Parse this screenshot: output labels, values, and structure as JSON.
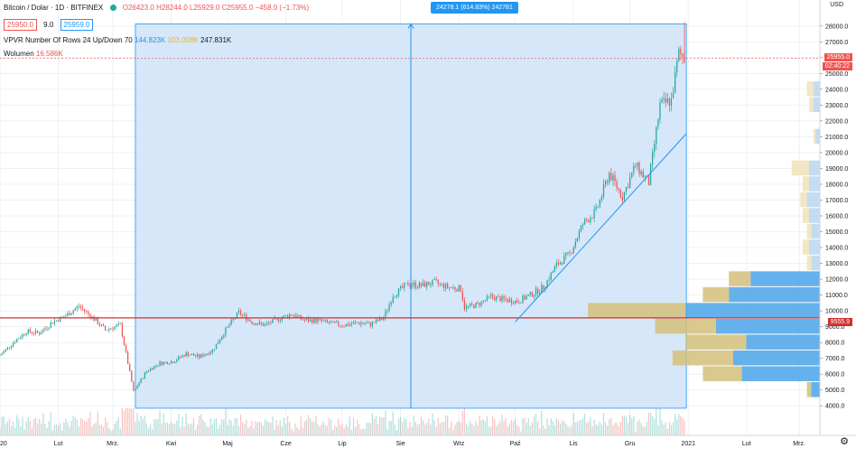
{
  "legend": {
    "symbol": "Bitcoin / Dolar · 1D · BITFINEX",
    "ohlc": "O26423.0 H28244.0 L25929.0 C25955.0 −458.0 (−1.73%)",
    "bid": "25950.0",
    "spread": "9.0",
    "ask": "25959.0",
    "vpvr_label": "VPVR Number Of Rows 24 Up/Down 70",
    "vpvr_up": "144.823K",
    "vpvr_down": "103.008K",
    "vpvr_total": "247.831K",
    "volume_label": "Wolumen",
    "volume_value": "16.586K"
  },
  "measure_label": "24278.1 (614.83%) 242781",
  "price_tags": {
    "last": "25955.0",
    "timer": "02:40:22",
    "line": "9555.9",
    "currency": "USD"
  },
  "colors": {
    "up": "#26a69a",
    "down": "#ef5350",
    "measure_fill": "#cfe3f8",
    "measure_line": "#2196f3",
    "hline": "#d32f2f",
    "vp_up": "#4aa3e8",
    "vp_down": "#d4c07a"
  },
  "chart_data": {
    "type": "candlestick",
    "y_axis": {
      "ticks": [
        4000,
        5000,
        6000,
        7000,
        8000,
        9000,
        10000,
        11000,
        12000,
        13000,
        14000,
        15000,
        16000,
        17000,
        18000,
        19000,
        20000,
        21000,
        22000,
        23000,
        24000,
        25000,
        26000,
        27000,
        28000
      ],
      "labels": [
        "4000.0",
        "5000.0",
        "6000.0",
        "7000.0",
        "8000.0",
        "9000.0",
        "10000.0",
        "11000.0",
        "12000.0",
        "13000.0",
        "14000.0",
        "15000.0",
        "16000.0",
        "17000.0",
        "18000.0",
        "19000.0",
        "20000.0",
        "21000.0",
        "22000.0",
        "23000.0",
        "24000.0",
        "25000.0",
        "26000.0",
        "27000.0",
        "28000.0"
      ],
      "range": [
        3500,
        28500
      ]
    },
    "x_axis": {
      "labels": [
        "2020",
        "Lut",
        "Mrz.",
        "Kwi",
        "Maj",
        "Cze",
        "Lip",
        "Sie",
        "Wrz",
        "Paź",
        "Lis",
        "Gru",
        "2021",
        "Lut",
        "Mrz."
      ],
      "label_dates": [
        "2020-01-01",
        "2020-02-01",
        "2020-03-01",
        "2020-04-01",
        "2020-05-01",
        "2020-06-01",
        "2020-07-01",
        "2020-08-01",
        "2020-09-01",
        "2020-10-01",
        "2020-11-01",
        "2020-12-01",
        "2021-01-01",
        "2021-02-01",
        "2021-03-01"
      ],
      "range": [
        "2020-01-01",
        "2021-03-12"
      ]
    },
    "close_path": [
      [
        "2020-01-01",
        7200
      ],
      [
        "2020-01-08",
        8000
      ],
      [
        "2020-01-15",
        8700
      ],
      [
        "2020-01-22",
        8600
      ],
      [
        "2020-01-29",
        9300
      ],
      [
        "2020-02-05",
        9700
      ],
      [
        "2020-02-12",
        10300
      ],
      [
        "2020-02-19",
        9600
      ],
      [
        "2020-02-26",
        8800
      ],
      [
        "2020-03-05",
        9100
      ],
      [
        "2020-03-12",
        4900
      ],
      [
        "2020-03-19",
        6200
      ],
      [
        "2020-03-26",
        6700
      ],
      [
        "2020-04-02",
        6800
      ],
      [
        "2020-04-09",
        7300
      ],
      [
        "2020-04-16",
        7100
      ],
      [
        "2020-04-23",
        7500
      ],
      [
        "2020-04-30",
        8800
      ],
      [
        "2020-05-07",
        9900
      ],
      [
        "2020-05-14",
        9300
      ],
      [
        "2020-05-21",
        9100
      ],
      [
        "2020-05-28",
        9500
      ],
      [
        "2020-06-04",
        9800
      ],
      [
        "2020-06-11",
        9400
      ],
      [
        "2020-06-18",
        9400
      ],
      [
        "2020-06-25",
        9200
      ],
      [
        "2020-07-02",
        9100
      ],
      [
        "2020-07-09",
        9250
      ],
      [
        "2020-07-16",
        9150
      ],
      [
        "2020-07-23",
        9550
      ],
      [
        "2020-07-28",
        11000
      ],
      [
        "2020-08-05",
        11700
      ],
      [
        "2020-08-12",
        11600
      ],
      [
        "2020-08-19",
        11800
      ],
      [
        "2020-08-26",
        11500
      ],
      [
        "2020-09-02",
        11400
      ],
      [
        "2020-09-04",
        10200
      ],
      [
        "2020-09-11",
        10400
      ],
      [
        "2020-09-18",
        10900
      ],
      [
        "2020-09-25",
        10700
      ],
      [
        "2020-10-02",
        10600
      ],
      [
        "2020-10-09",
        11000
      ],
      [
        "2020-10-16",
        11500
      ],
      [
        "2020-10-23",
        12900
      ],
      [
        "2020-10-30",
        13600
      ],
      [
        "2020-11-06",
        15500
      ],
      [
        "2020-11-13",
        16300
      ],
      [
        "2020-11-20",
        18700
      ],
      [
        "2020-11-27",
        17200
      ],
      [
        "2020-12-04",
        19200
      ],
      [
        "2020-12-11",
        18100
      ],
      [
        "2020-12-17",
        23000
      ],
      [
        "2020-12-23",
        23300
      ],
      [
        "2020-12-27",
        26300
      ],
      [
        "2020-12-30",
        25955
      ]
    ],
    "last_price": 25955.0,
    "horizontal_line": 9555.9,
    "measure_box": {
      "x_from": "2020-03-13",
      "x_to": "2020-12-31",
      "y_from": 3850,
      "y_to": 28130,
      "change": "24278.1 (614.83%) 242781"
    },
    "trend_line": [
      [
        "2020-10-01",
        9300
      ],
      [
        "2020-12-31",
        21200
      ]
    ],
    "volume_profile": {
      "rows": [
        {
          "price": 12000,
          "up": 0.32,
          "down": 0.1
        },
        {
          "price": 11000,
          "up": 0.42,
          "down": 0.12
        },
        {
          "price": 10000,
          "up": 0.62,
          "down": 0.45
        },
        {
          "price": 9000,
          "up": 0.48,
          "down": 0.28
        },
        {
          "price": 8000,
          "up": 0.34,
          "down": 0.28
        },
        {
          "price": 7000,
          "up": 0.4,
          "down": 0.28
        },
        {
          "price": 6000,
          "up": 0.36,
          "down": 0.18
        },
        {
          "price": 5000,
          "up": 0.04,
          "down": 0.02
        }
      ],
      "rows_right": [
        {
          "price": 24000,
          "up": 0.03,
          "down": 0.03
        },
        {
          "price": 23000,
          "up": 0.03,
          "down": 0.02
        },
        {
          "price": 21000,
          "up": 0.02,
          "down": 0.01
        },
        {
          "price": 19000,
          "up": 0.05,
          "down": 0.08
        },
        {
          "price": 18000,
          "up": 0.05,
          "down": 0.03
        },
        {
          "price": 17000,
          "up": 0.06,
          "down": 0.03
        },
        {
          "price": 16000,
          "up": 0.05,
          "down": 0.03
        },
        {
          "price": 15000,
          "up": 0.04,
          "down": 0.02
        },
        {
          "price": 14000,
          "up": 0.05,
          "down": 0.03
        },
        {
          "price": 13000,
          "up": 0.04,
          "down": 0.02
        }
      ]
    }
  }
}
